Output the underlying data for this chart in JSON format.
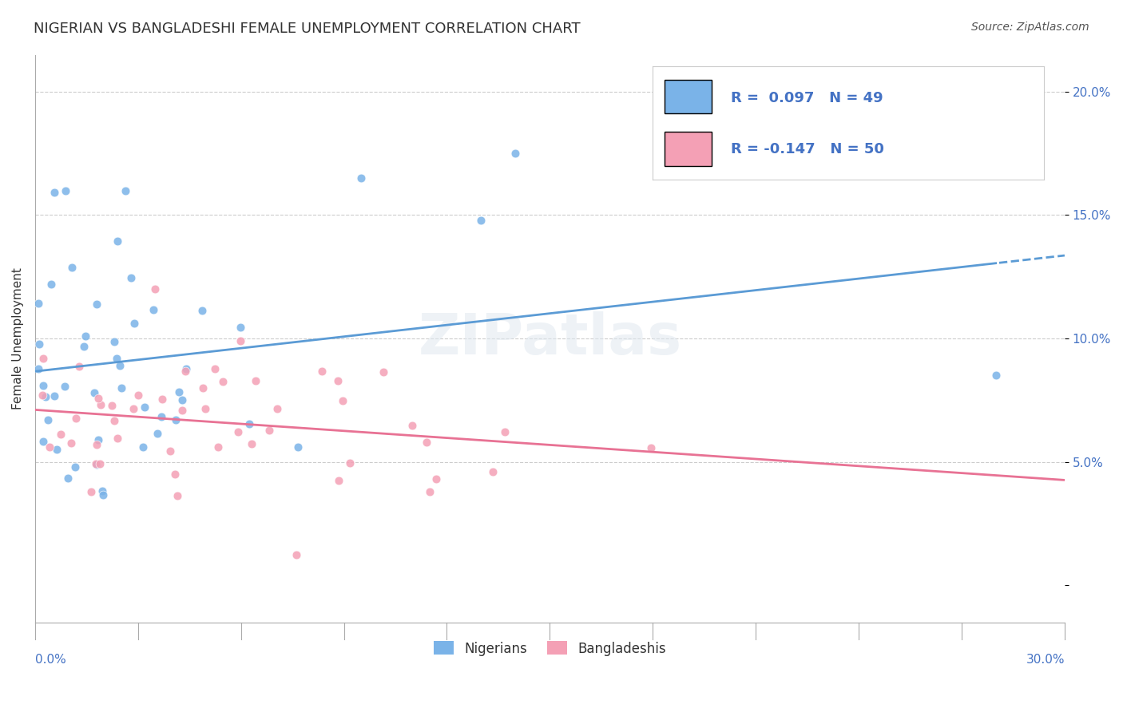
{
  "title": "NIGERIAN VS BANGLADESHI FEMALE UNEMPLOYMENT CORRELATION CHART",
  "source": "Source: ZipAtlas.com",
  "ylabel": "Female Unemployment",
  "yticks": [
    0.0,
    0.05,
    0.1,
    0.15,
    0.2
  ],
  "ytick_labels": [
    "",
    "5.0%",
    "10.0%",
    "15.0%",
    "20.0%"
  ],
  "xlim": [
    0.0,
    0.3
  ],
  "ylim": [
    -0.015,
    0.215
  ],
  "watermark": "ZIPatlas",
  "nigerian_scatter_color": "#7ab3e8",
  "bangladeshi_scatter_color": "#f4a0b5",
  "nigerian_line_color": "#5b9bd5",
  "bangladeshi_line_color": "#e87294",
  "nigerian_R": 0.097,
  "bangladeshi_R": -0.147,
  "grid_color": "#cccccc",
  "background_color": "#ffffff",
  "title_fontsize": 13,
  "axis_label_fontsize": 11,
  "tick_fontsize": 11,
  "legend_fontsize": 12
}
